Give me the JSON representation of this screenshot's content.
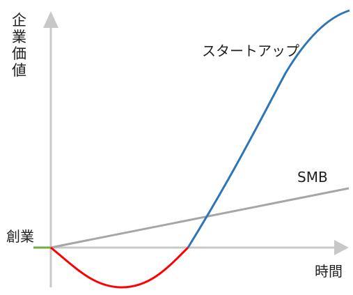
{
  "diagram": {
    "y_axis_label": [
      "企",
      "業",
      "価",
      "値"
    ],
    "x_axis_label": "時間",
    "origin_label": "創業",
    "startup_label": "スタートアップ",
    "smb_label": "SMB",
    "colors": {
      "axis": "#c8c8c8",
      "smb_line": "#a6a6a6",
      "startup_loss": "#ff0000",
      "startup_growth": "#2e75b6",
      "origin_marker": "#70ad47"
    }
  }
}
